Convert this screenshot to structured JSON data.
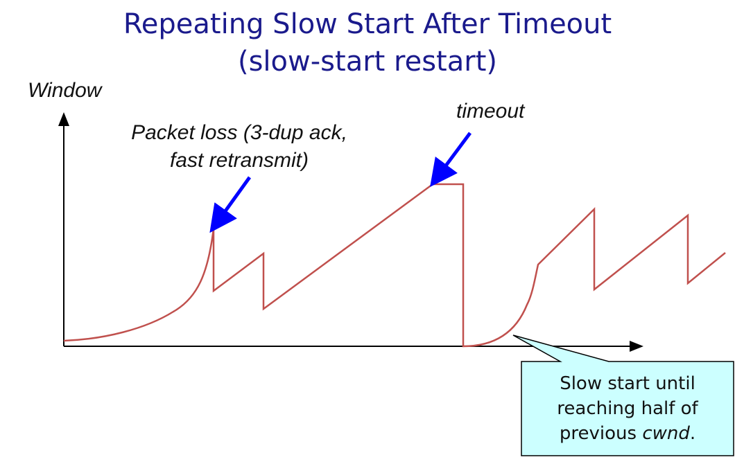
{
  "title": {
    "line1": "Repeating Slow Start After Timeout",
    "line2": "(slow-start restart)"
  },
  "axes": {
    "y_label": "Window"
  },
  "annotations": {
    "packet_loss_line1": "Packet loss (3-dup ack,",
    "packet_loss_line2": "fast retransmit)",
    "timeout": "timeout"
  },
  "callout": {
    "line1": "Slow start until",
    "line2": "reaching half of",
    "line3_prefix": "previous ",
    "line3_em": "cwnd",
    "line3_suffix": "."
  },
  "colors": {
    "title": "#1a1a8c",
    "curve": "#c0504d",
    "arrow": "#0000ff",
    "callout_fill": "#ccffff"
  }
}
